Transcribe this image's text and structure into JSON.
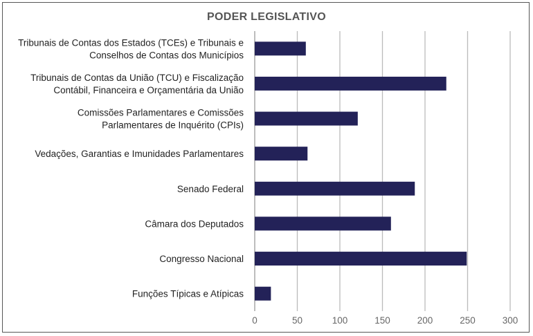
{
  "chart_data": {
    "type": "bar",
    "orientation": "horizontal",
    "title": "PODER LEGISLATIVO",
    "xlabel": "",
    "ylabel": "",
    "categories": [
      [
        "Tribunais de Contas dos Estados (TCEs) e Tribunais e",
        "Conselhos de Contas dos Municípios"
      ],
      [
        "Tribunais de Contas da União (TCU) e Fiscalização",
        "Contábil, Financeira e Orçamentária da União"
      ],
      [
        "Comissões Parlamentares e Comissões",
        "Parlamentares de Inquérito (CPIs)"
      ],
      [
        "Vedações, Garantias e Imunidades Parlamentares"
      ],
      [
        "Senado Federal"
      ],
      [
        "Câmara dos Deputados"
      ],
      [
        "Congresso Nacional"
      ],
      [
        "Funções Típicas e Atípicas"
      ]
    ],
    "values": [
      60,
      225,
      121,
      62,
      188,
      160,
      249,
      19
    ],
    "xlim": [
      0,
      300
    ],
    "xticks": [
      0,
      50,
      100,
      150,
      200,
      250,
      300
    ],
    "grid": "vertical",
    "legend": "none",
    "bar_color": "#232258",
    "grid_color": "#bbbbbb"
  }
}
